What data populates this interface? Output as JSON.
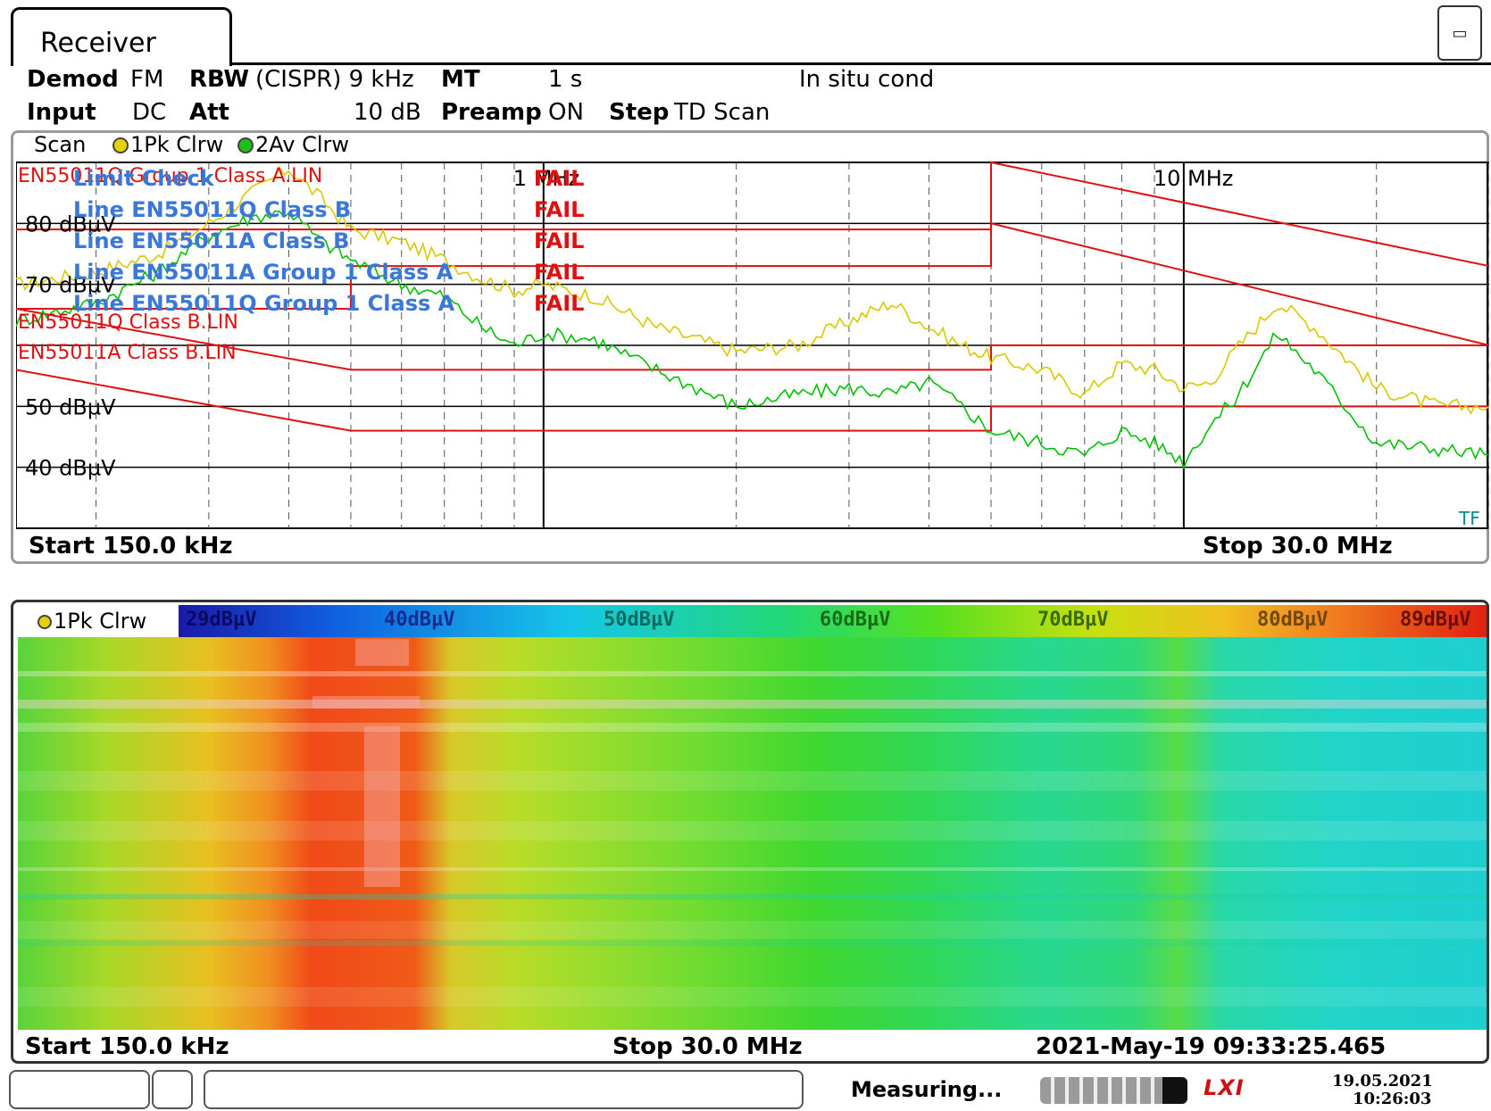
{
  "header": {
    "tab_title": "Receiver",
    "menu_icon": "panel-menu-icon"
  },
  "params": {
    "row1": [
      {
        "label": "Demod",
        "value": "FM"
      },
      {
        "label": "RBW",
        "value": "(CISPR) 9 kHz"
      },
      {
        "label": "MT",
        "value": "1 s"
      },
      {
        "label": "",
        "value": "In situ cond"
      }
    ],
    "row2": [
      {
        "label": "Input",
        "value": "DC"
      },
      {
        "label": "Att",
        "value": "10 dB"
      },
      {
        "label": "Preamp",
        "value": "ON"
      },
      {
        "label": "Step",
        "value": "TD Scan"
      }
    ]
  },
  "scan": {
    "title": "Scan",
    "trace1": "1Pk Clrw",
    "trace2": "2Av Clrw",
    "start": "Start 150.0 kHz",
    "stop": "Stop 30.0 MHz",
    "tf_label": "TF"
  },
  "limit_check": {
    "title": "Limit Check",
    "rows": [
      {
        "line": "Line EN55011Q Class B",
        "result": "FAIL"
      },
      {
        "line": "Line EN55011A Class B",
        "result": "FAIL"
      },
      {
        "line": "Line EN55011A Group 1 Class A",
        "result": "FAIL"
      },
      {
        "line": "Line EN55011Q Group 1 Class A",
        "result": "FAIL"
      }
    ],
    "header_result": "FAIL"
  },
  "limit_labels": [
    "EN55011Q Group 1 Class A.LIN",
    "EN55011Q Class B.LIN",
    "EN55011A Class B.LIN"
  ],
  "chart_data": {
    "type": "line",
    "x_scale": "log",
    "xlim": [
      0.15,
      30
    ],
    "x_unit": "MHz",
    "ylim": [
      30,
      90
    ],
    "y_ticks": [
      "40 dBµV",
      "50 dBµV",
      "70 dBµV",
      "80 dBµV"
    ],
    "x_ticks": [
      "1 MHz",
      "10 MHz"
    ],
    "series": [
      {
        "name": "1Pk Clrw",
        "color": "#d8c800",
        "x": [
          0.15,
          0.2,
          0.25,
          0.3,
          0.35,
          0.4,
          0.45,
          0.5,
          0.6,
          0.7,
          0.8,
          0.9,
          1.0,
          1.2,
          1.5,
          2.0,
          2.5,
          3.0,
          3.5,
          4.0,
          4.5,
          5.0,
          6.0,
          7.0,
          8.0,
          9.0,
          10.0,
          11.0,
          12.0,
          14.0,
          16.0,
          20.0,
          25.0,
          30.0
        ],
        "y": [
          70,
          72,
          75,
          80,
          85,
          89,
          84,
          79,
          77,
          74,
          71,
          69,
          70,
          68,
          63,
          59,
          60,
          64,
          67,
          63,
          60,
          58,
          56,
          52,
          57,
          56,
          53,
          54,
          59,
          67,
          63,
          53,
          50,
          50
        ]
      },
      {
        "name": "2Av Clrw",
        "color": "#00c000",
        "x": [
          0.15,
          0.2,
          0.25,
          0.3,
          0.35,
          0.4,
          0.45,
          0.5,
          0.6,
          0.7,
          0.8,
          0.9,
          1.0,
          1.2,
          1.5,
          2.0,
          2.5,
          3.0,
          3.5,
          4.0,
          4.5,
          5.0,
          6.0,
          7.0,
          8.0,
          9.0,
          10.0,
          11.0,
          12.0,
          14.0,
          16.0,
          20.0,
          25.0,
          30.0
        ],
        "y": [
          64,
          67,
          72,
          78,
          81,
          82,
          77,
          74,
          70,
          68,
          63,
          60,
          62,
          61,
          56,
          50,
          52,
          53,
          52,
          54,
          50,
          46,
          44,
          42,
          46,
          44,
          41,
          47,
          51,
          62,
          56,
          44,
          43,
          42
        ]
      }
    ],
    "limit_lines": [
      {
        "name": "EN55011Q Group 1 Class A.LIN",
        "x": [
          0.15,
          0.5,
          0.5,
          5.0,
          5.0,
          30.0
        ],
        "y": [
          79,
          79,
          79,
          79,
          90,
          73
        ]
      },
      {
        "name": "EN55011A Group 1 Class A",
        "x": [
          0.15,
          0.5,
          0.5,
          5.0,
          5.0,
          30.0
        ],
        "y": [
          66,
          66,
          73,
          73,
          80,
          60
        ]
      },
      {
        "name": "EN55011Q Class B.LIN",
        "x": [
          0.15,
          0.5,
          0.5,
          5.0,
          5.0,
          30.0
        ],
        "y": [
          66,
          56,
          56,
          56,
          60,
          60
        ]
      },
      {
        "name": "EN55011A Class B.LIN",
        "x": [
          0.15,
          0.5,
          0.5,
          5.0,
          5.0,
          30.0
        ],
        "y": [
          56,
          46,
          46,
          46,
          50,
          50
        ]
      }
    ]
  },
  "waterfall": {
    "trace": "1Pk Clrw",
    "scale": [
      "29dBµV",
      "40dBµV",
      "50dBµV",
      "60dBµV",
      "70dBµV",
      "80dBµV",
      "89dBµV"
    ],
    "start": "Start 150.0 kHz",
    "stop": "Stop 30.0 MHz",
    "timestamp": "2021-May-19 09:33:25.465"
  },
  "status": {
    "message": "Measuring...",
    "lxi": "LXI",
    "date": "19.05.2021",
    "time": "10:26:03"
  }
}
